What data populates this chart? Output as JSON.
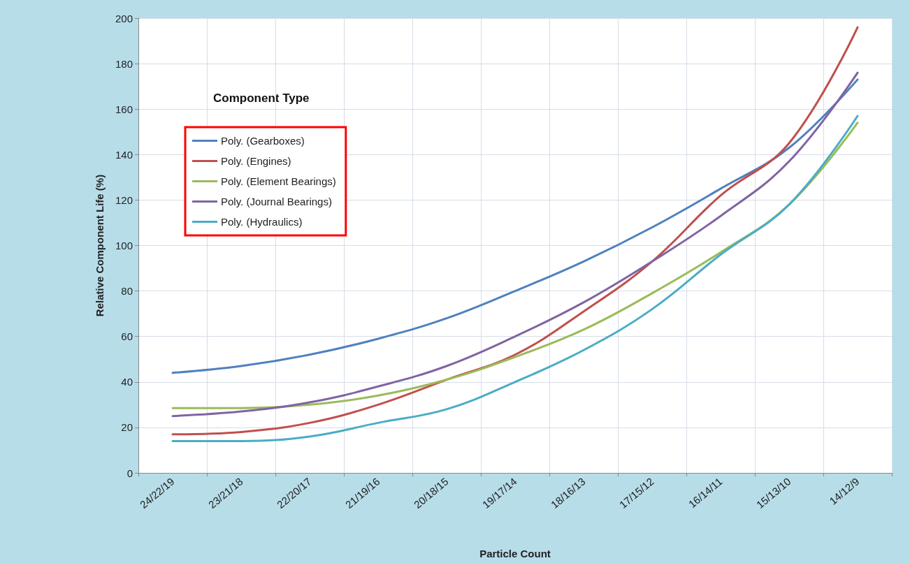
{
  "chart_data": {
    "type": "line",
    "xlabel": "Particle Count",
    "ylabel": "Relative Component Life (%)",
    "legend_title": "Component Type",
    "categories": [
      "24/22/19",
      "23/21/18",
      "22/20/17",
      "21/19/16",
      "20/18/15",
      "19/17/14",
      "18/16/13",
      "17/15/12",
      "16/14/11",
      "15/13/10",
      "14/12/9"
    ],
    "series": [
      {
        "name": "Poly. (Gearboxes)",
        "color": "#4f81bd",
        "values": [
          44,
          47,
          52,
          59,
          68,
          80,
          93,
          108,
          125,
          143,
          173
        ]
      },
      {
        "name": "Poly. (Engines)",
        "color": "#c0504d",
        "values": [
          17,
          18,
          22,
          30,
          41,
          52,
          71,
          93,
          122,
          145,
          196
        ]
      },
      {
        "name": "Poly. (Element Bearings)",
        "color": "#9bbb59",
        "values": [
          28.5,
          28.5,
          30,
          34,
          41,
          51,
          63,
          79,
          97,
          118,
          154
        ]
      },
      {
        "name": "Poly. (Journal Bearings)",
        "color": "#8064a2",
        "values": [
          25,
          27,
          31,
          38,
          47,
          60,
          75,
          93,
          113,
          137,
          176
        ]
      },
      {
        "name": "Poly. (Hydraulics)",
        "color": "#4bacc6",
        "values": [
          14,
          14,
          16,
          22,
          28,
          40,
          54,
          72,
          96,
          118,
          157
        ]
      }
    ],
    "ylim": [
      0,
      200
    ],
    "yticks": [
      0,
      20,
      40,
      60,
      80,
      100,
      120,
      140,
      160,
      180,
      200
    ],
    "grid": true,
    "legend": "top left",
    "marker": "none",
    "line_style": "solid"
  }
}
